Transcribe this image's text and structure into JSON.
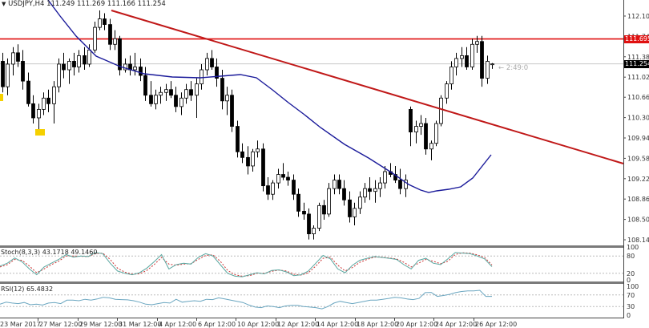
{
  "header": {
    "symbol_line": "USDJPY,H4",
    "ohlc": "111.249 111.269 111.166 111.254"
  },
  "countdown": "← 2:49:0",
  "price_tags": {
    "resistance": "111.695",
    "current": "111.254"
  },
  "colors": {
    "up_candle": "#ffffff",
    "down_candle": "#000000",
    "candle_outline": "#000000",
    "resistance_line": "#e01010",
    "trend_line": "#c01818",
    "moving_average": "#1a1a9a",
    "stoch_main": "#5aa7a0",
    "stoch_signal": "#cc3333",
    "rsi": "#6aa6c0",
    "highlight": "#f5d000"
  },
  "stoch": {
    "label": "Stoch(8,3,3) 43.1718 49.1460"
  },
  "rsi": {
    "label": "RSI(12) 65.4832"
  },
  "chart_data": [
    {
      "type": "candlestick",
      "title": "USDJPY,H4 111.249 111.269 111.166 111.254",
      "xlabel": "",
      "ylabel": "",
      "ylim": [
        108.0,
        112.3
      ],
      "y_ticks": [
        "112.100",
        "111.380",
        "111.020",
        "110.665",
        "110.305",
        "109.945",
        "109.585",
        "109.225",
        "108.865",
        "108.505",
        "108.145"
      ],
      "y_tick_partial": "111.740",
      "x_ticks": [
        "23 Mar 2017",
        "27 Mar 12:00",
        "29 Mar 12:00",
        "31 Mar 12:00",
        "4 Apr 12:00",
        "6 Apr 12:00",
        "10 Apr 12:00",
        "12 Apr 12:00",
        "14 Apr 12:00",
        "18 Apr 12:00",
        "20 Apr 12:00",
        "24 Apr 12:00",
        "26 Apr 12:00"
      ],
      "last_price": 111.254,
      "ohlc_last": {
        "open": 111.249,
        "high": 111.269,
        "low": 111.166,
        "close": 111.254
      },
      "horizontal_lines": [
        {
          "name": "resistance",
          "value": 111.695,
          "color": "#e01010"
        }
      ],
      "trend_lines": [
        {
          "name": "descending-trendline",
          "from": {
            "date": "30 Mar",
            "price": 112.15
          },
          "to": {
            "date": "28 Apr",
            "price": 109.5
          },
          "color": "#c01818"
        }
      ],
      "moving_average_series": [
        {
          "x": "23 Mar",
          "y": 112.3
        },
        {
          "x": "28 Mar",
          "y": 111.55
        },
        {
          "x": "31 Mar",
          "y": 111.15
        },
        {
          "x": "4 Apr",
          "y": 111.02
        },
        {
          "x": "7 Apr",
          "y": 111.05
        },
        {
          "x": "10 Apr",
          "y": 111.05
        },
        {
          "x": "11 Apr",
          "y": 110.85
        },
        {
          "x": "13 Apr",
          "y": 110.25
        },
        {
          "x": "17 Apr",
          "y": 109.75
        },
        {
          "x": "19 Apr",
          "y": 109.45
        },
        {
          "x": "21 Apr",
          "y": 108.98
        },
        {
          "x": "24 Apr",
          "y": 109.05
        },
        {
          "x": "26 Apr",
          "y": 109.55
        }
      ],
      "candles_approx": [
        {
          "o": 111.3,
          "h": 111.45,
          "l": 110.75,
          "c": 110.85
        },
        {
          "o": 110.85,
          "h": 111.35,
          "l": 110.7,
          "c": 111.25
        },
        {
          "o": 111.25,
          "h": 111.55,
          "l": 111.05,
          "c": 111.45
        },
        {
          "o": 111.45,
          "h": 111.6,
          "l": 111.2,
          "c": 111.3
        },
        {
          "o": 111.3,
          "h": 111.5,
          "l": 110.8,
          "c": 110.95
        },
        {
          "o": 110.95,
          "h": 111.1,
          "l": 110.5,
          "c": 110.55
        },
        {
          "o": 110.55,
          "h": 110.7,
          "l": 110.2,
          "c": 110.3
        },
        {
          "o": 110.3,
          "h": 110.55,
          "l": 110.05,
          "c": 110.45
        },
        {
          "o": 110.45,
          "h": 110.75,
          "l": 110.35,
          "c": 110.65
        },
        {
          "o": 110.65,
          "h": 110.8,
          "l": 110.4,
          "c": 110.55
        },
        {
          "o": 110.55,
          "h": 110.95,
          "l": 110.2,
          "c": 110.85
        },
        {
          "o": 110.85,
          "h": 111.35,
          "l": 110.75,
          "c": 111.25
        },
        {
          "o": 111.25,
          "h": 111.45,
          "l": 111.0,
          "c": 111.15
        },
        {
          "o": 111.15,
          "h": 111.35,
          "l": 110.9,
          "c": 111.3
        },
        {
          "o": 111.3,
          "h": 111.45,
          "l": 111.05,
          "c": 111.2
        },
        {
          "o": 111.2,
          "h": 111.5,
          "l": 111.1,
          "c": 111.4
        },
        {
          "o": 111.4,
          "h": 111.55,
          "l": 111.15,
          "c": 111.25
        },
        {
          "o": 111.25,
          "h": 111.6,
          "l": 111.2,
          "c": 111.5
        },
        {
          "o": 111.5,
          "h": 112.0,
          "l": 111.45,
          "c": 111.9
        },
        {
          "o": 111.9,
          "h": 112.2,
          "l": 111.85,
          "c": 112.05
        },
        {
          "o": 112.05,
          "h": 112.15,
          "l": 111.85,
          "c": 111.95
        },
        {
          "o": 111.95,
          "h": 112.05,
          "l": 111.5,
          "c": 111.6
        },
        {
          "o": 111.6,
          "h": 111.85,
          "l": 111.5,
          "c": 111.7
        },
        {
          "o": 111.7,
          "h": 111.75,
          "l": 111.05,
          "c": 111.15
        },
        {
          "o": 111.15,
          "h": 111.35,
          "l": 111.1,
          "c": 111.25
        },
        {
          "o": 111.25,
          "h": 111.4,
          "l": 111.05,
          "c": 111.15
        },
        {
          "o": 111.15,
          "h": 111.45,
          "l": 111.05,
          "c": 111.2
        },
        {
          "o": 111.2,
          "h": 111.35,
          "l": 110.95,
          "c": 111.05
        },
        {
          "o": 111.05,
          "h": 111.2,
          "l": 110.6,
          "c": 110.7
        },
        {
          "o": 110.7,
          "h": 110.95,
          "l": 110.5,
          "c": 110.55
        },
        {
          "o": 110.55,
          "h": 110.8,
          "l": 110.45,
          "c": 110.7
        },
        {
          "o": 110.7,
          "h": 110.85,
          "l": 110.55,
          "c": 110.75
        },
        {
          "o": 110.75,
          "h": 110.9,
          "l": 110.6,
          "c": 110.8
        },
        {
          "o": 110.8,
          "h": 110.95,
          "l": 110.65,
          "c": 110.7
        },
        {
          "o": 110.7,
          "h": 110.85,
          "l": 110.4,
          "c": 110.5
        },
        {
          "o": 110.5,
          "h": 110.75,
          "l": 110.35,
          "c": 110.65
        },
        {
          "o": 110.65,
          "h": 110.9,
          "l": 110.55,
          "c": 110.8
        },
        {
          "o": 110.8,
          "h": 110.95,
          "l": 110.6,
          "c": 110.7
        },
        {
          "o": 110.7,
          "h": 111.0,
          "l": 110.3,
          "c": 110.9
        },
        {
          "o": 110.9,
          "h": 111.25,
          "l": 110.8,
          "c": 111.15
        },
        {
          "o": 111.15,
          "h": 111.45,
          "l": 111.05,
          "c": 111.35
        },
        {
          "o": 111.35,
          "h": 111.5,
          "l": 111.15,
          "c": 111.2
        },
        {
          "o": 111.2,
          "h": 111.35,
          "l": 110.85,
          "c": 111.0
        },
        {
          "o": 111.0,
          "h": 111.15,
          "l": 110.45,
          "c": 110.6
        },
        {
          "o": 110.6,
          "h": 110.85,
          "l": 110.35,
          "c": 110.7
        },
        {
          "o": 110.7,
          "h": 110.8,
          "l": 110.05,
          "c": 110.15
        },
        {
          "o": 110.15,
          "h": 110.25,
          "l": 109.6,
          "c": 109.7
        },
        {
          "o": 109.7,
          "h": 109.85,
          "l": 109.5,
          "c": 109.6
        },
        {
          "o": 109.6,
          "h": 109.8,
          "l": 109.3,
          "c": 109.45
        },
        {
          "o": 109.45,
          "h": 109.75,
          "l": 109.35,
          "c": 109.7
        },
        {
          "o": 109.7,
          "h": 109.9,
          "l": 109.6,
          "c": 109.75
        },
        {
          "o": 109.75,
          "h": 109.85,
          "l": 109.0,
          "c": 109.1
        },
        {
          "o": 109.1,
          "h": 109.25,
          "l": 108.85,
          "c": 108.95
        },
        {
          "o": 108.95,
          "h": 109.2,
          "l": 108.85,
          "c": 109.15
        },
        {
          "o": 109.15,
          "h": 109.4,
          "l": 109.05,
          "c": 109.3
        },
        {
          "o": 109.3,
          "h": 109.5,
          "l": 109.2,
          "c": 109.25
        },
        {
          "o": 109.25,
          "h": 109.35,
          "l": 109.1,
          "c": 109.2
        },
        {
          "o": 109.2,
          "h": 109.3,
          "l": 108.85,
          "c": 108.95
        },
        {
          "o": 108.95,
          "h": 109.05,
          "l": 108.55,
          "c": 108.65
        },
        {
          "o": 108.65,
          "h": 108.8,
          "l": 108.5,
          "c": 108.6
        },
        {
          "o": 108.6,
          "h": 108.7,
          "l": 108.15,
          "c": 108.25
        },
        {
          "o": 108.25,
          "h": 108.4,
          "l": 108.15,
          "c": 108.35
        },
        {
          "o": 108.35,
          "h": 108.8,
          "l": 108.3,
          "c": 108.75
        },
        {
          "o": 108.75,
          "h": 108.85,
          "l": 108.5,
          "c": 108.6
        },
        {
          "o": 108.6,
          "h": 109.15,
          "l": 108.55,
          "c": 109.05
        },
        {
          "o": 109.05,
          "h": 109.3,
          "l": 108.95,
          "c": 109.2
        },
        {
          "o": 109.2,
          "h": 109.3,
          "l": 108.95,
          "c": 109.05
        },
        {
          "o": 109.05,
          "h": 109.2,
          "l": 108.75,
          "c": 108.85
        },
        {
          "o": 108.85,
          "h": 109.0,
          "l": 108.45,
          "c": 108.55
        },
        {
          "o": 108.55,
          "h": 108.8,
          "l": 108.4,
          "c": 108.7
        },
        {
          "o": 108.7,
          "h": 109.0,
          "l": 108.6,
          "c": 108.9
        },
        {
          "o": 108.9,
          "h": 109.15,
          "l": 108.8,
          "c": 109.05
        },
        {
          "o": 109.05,
          "h": 109.25,
          "l": 108.85,
          "c": 109.0
        },
        {
          "o": 109.0,
          "h": 109.2,
          "l": 108.8,
          "c": 109.05
        },
        {
          "o": 109.05,
          "h": 109.25,
          "l": 108.9,
          "c": 109.15
        },
        {
          "o": 109.15,
          "h": 109.45,
          "l": 109.05,
          "c": 109.35
        },
        {
          "o": 109.35,
          "h": 109.5,
          "l": 109.25,
          "c": 109.3
        },
        {
          "o": 109.3,
          "h": 109.45,
          "l": 109.15,
          "c": 109.2
        },
        {
          "o": 109.2,
          "h": 109.4,
          "l": 108.95,
          "c": 109.05
        },
        {
          "o": 109.05,
          "h": 109.3,
          "l": 108.9,
          "c": 109.2
        },
        {
          "o": 110.45,
          "h": 110.5,
          "l": 109.8,
          "c": 110.05
        },
        {
          "o": 110.05,
          "h": 110.25,
          "l": 109.85,
          "c": 110.15
        },
        {
          "o": 110.15,
          "h": 110.35,
          "l": 110.0,
          "c": 110.2
        },
        {
          "o": 110.2,
          "h": 110.3,
          "l": 109.65,
          "c": 109.75
        },
        {
          "o": 109.75,
          "h": 109.9,
          "l": 109.55,
          "c": 109.85
        },
        {
          "o": 109.85,
          "h": 110.25,
          "l": 109.8,
          "c": 110.2
        },
        {
          "o": 110.2,
          "h": 110.7,
          "l": 110.15,
          "c": 110.65
        },
        {
          "o": 110.65,
          "h": 110.95,
          "l": 110.55,
          "c": 110.9
        },
        {
          "o": 110.9,
          "h": 111.3,
          "l": 110.8,
          "c": 111.2
        },
        {
          "o": 111.2,
          "h": 111.45,
          "l": 111.05,
          "c": 111.35
        },
        {
          "o": 111.35,
          "h": 111.55,
          "l": 111.2,
          "c": 111.4
        },
        {
          "o": 111.4,
          "h": 111.55,
          "l": 111.15,
          "c": 111.2
        },
        {
          "o": 111.2,
          "h": 111.7,
          "l": 111.15,
          "c": 111.6
        },
        {
          "o": 111.6,
          "h": 111.75,
          "l": 111.45,
          "c": 111.65
        },
        {
          "o": 111.65,
          "h": 111.75,
          "l": 110.85,
          "c": 111.0
        },
        {
          "o": 111.0,
          "h": 111.4,
          "l": 110.9,
          "c": 111.3
        },
        {
          "o": 111.249,
          "h": 111.269,
          "l": 111.166,
          "c": 111.254
        }
      ]
    },
    {
      "type": "line",
      "title": "Stoch(8,3,3) 43.1718 49.1460",
      "ylim": [
        0,
        100
      ],
      "y_ticks": [
        100,
        80,
        20,
        0
      ],
      "levels": [
        80,
        20
      ],
      "series": [
        {
          "name": "main",
          "last": 43.1718,
          "values": [
            45,
            55,
            73,
            60,
            35,
            15,
            42,
            55,
            68,
            85,
            76,
            80,
            78,
            92,
            88,
            55,
            28,
            20,
            15,
            22,
            38,
            60,
            85,
            35,
            50,
            55,
            52,
            75,
            88,
            80,
            50,
            20,
            10,
            8,
            15,
            22,
            18,
            30,
            32,
            25,
            12,
            15,
            28,
            55,
            82,
            70,
            35,
            22,
            48,
            65,
            72,
            78,
            75,
            72,
            68,
            50,
            35,
            65,
            72,
            55,
            50,
            70,
            92,
            90,
            88,
            80,
            70,
            43
          ]
        },
        {
          "name": "signal",
          "last": 49.146,
          "values": [
            42,
            50,
            68,
            65,
            45,
            22,
            35,
            50,
            62,
            80,
            80,
            79,
            78,
            88,
            90,
            68,
            38,
            24,
            17,
            18,
            30,
            50,
            75,
            52,
            48,
            52,
            53,
            68,
            82,
            84,
            62,
            30,
            15,
            10,
            12,
            20,
            20,
            27,
            31,
            28,
            17,
            14,
            22,
            45,
            72,
            76,
            48,
            28,
            40,
            58,
            68,
            76,
            76,
            73,
            70,
            58,
            42,
            55,
            68,
            62,
            53,
            62,
            85,
            91,
            90,
            84,
            75,
            49
          ]
        }
      ]
    },
    {
      "type": "line",
      "title": "RSI(12) 65.4832",
      "ylim": [
        0,
        100
      ],
      "y_ticks": [
        100,
        70,
        30,
        0
      ],
      "levels": [
        70,
        30
      ],
      "series": [
        {
          "name": "RSI(12)",
          "last": 65.4832,
          "values": [
            38,
            45,
            42,
            40,
            44,
            36,
            38,
            35,
            42,
            44,
            40,
            52,
            52,
            50,
            55,
            52,
            56,
            62,
            60,
            55,
            54,
            53,
            50,
            45,
            38,
            36,
            40,
            44,
            42,
            55,
            45,
            48,
            50,
            48,
            55,
            54,
            60,
            56,
            52,
            48,
            44,
            35,
            28,
            26,
            32,
            30,
            26,
            32,
            34,
            34,
            30,
            28,
            26,
            22,
            30,
            42,
            48,
            44,
            40,
            44,
            48,
            52,
            52,
            55,
            58,
            62,
            60,
            56,
            54,
            58,
            78,
            79,
            65,
            68,
            72,
            78,
            82,
            84,
            84,
            86,
            65,
            65
          ]
        }
      ]
    }
  ]
}
